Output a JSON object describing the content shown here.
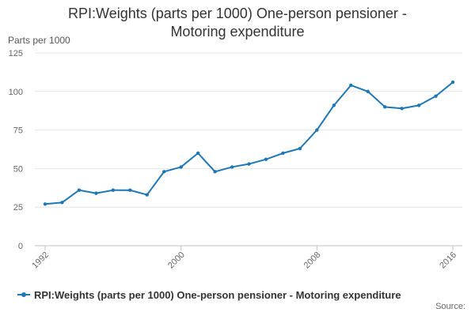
{
  "chart_data": {
    "type": "line",
    "title_lines": [
      "RPI:Weights (parts per 1000) One-person pensioner -",
      "Motoring expenditure"
    ],
    "ylabel": "Parts per 1000",
    "xlabel": "",
    "x": [
      1992,
      1993,
      1994,
      1995,
      1996,
      1997,
      1998,
      1999,
      2000,
      2001,
      2002,
      2003,
      2004,
      2005,
      2006,
      2007,
      2008,
      2009,
      2010,
      2011,
      2012,
      2013,
      2014,
      2015,
      2016
    ],
    "series": [
      {
        "name": "RPI:Weights (parts per 1000) One-person pensioner - Motoring expenditure",
        "color": "#1f77b4",
        "values": [
          27,
          28,
          36,
          34,
          36,
          36,
          33,
          48,
          51,
          60,
          48,
          51,
          53,
          56,
          60,
          63,
          75,
          91,
          104,
          100,
          90,
          89,
          91,
          97,
          106
        ]
      }
    ],
    "ylim": [
      0,
      125
    ],
    "yticks": [
      0,
      25,
      50,
      75,
      100,
      125
    ],
    "xtick_labels": [
      "1992",
      "2000",
      "2008",
      "2016"
    ],
    "grid": true,
    "legend_position": "bottom"
  },
  "source_label": "Source:"
}
